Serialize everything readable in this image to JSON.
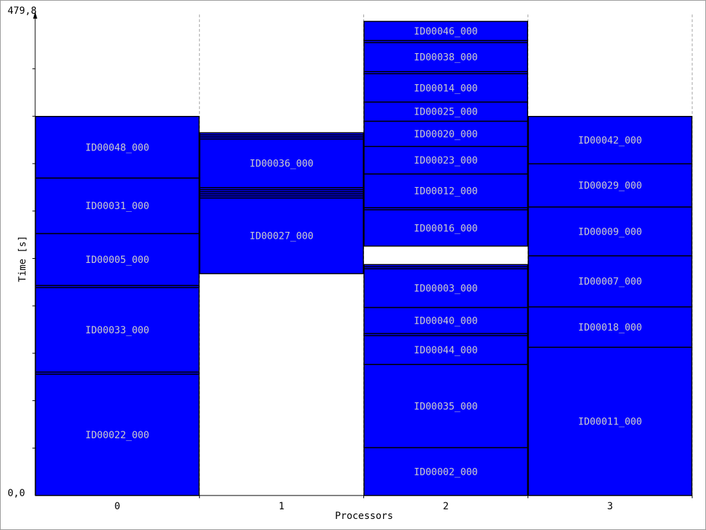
{
  "chart_data": {
    "type": "bar",
    "subtype": "stacked-gantt",
    "xlabel": "Processors",
    "ylabel": "Time [s]",
    "ylim": [
      0,
      479.8
    ],
    "y_min_label": "0,0",
    "y_max_label": "479,8",
    "grid": false,
    "colors": {
      "task_fill": "#0000ff",
      "task_border": "#000000",
      "task_text": "#cccccc",
      "separator": "#a0a0a0"
    },
    "processors": [
      {
        "name": "0",
        "tasks": [
          {
            "label": "ID00022_000",
            "start": 0.0,
            "end": 122.8
          },
          {
            "label": "",
            "start": 122.8,
            "end": 124.9
          },
          {
            "label": "ID00033_000",
            "start": 124.9,
            "end": 210.5
          },
          {
            "label": "",
            "start": 210.5,
            "end": 212.6
          },
          {
            "label": "ID00005_000",
            "start": 212.6,
            "end": 265.1
          },
          {
            "label": "ID00031_000",
            "start": 265.1,
            "end": 321.3
          },
          {
            "label": "ID00048_000",
            "start": 321.3,
            "end": 383.6
          }
        ]
      },
      {
        "name": "1",
        "tasks": [
          {
            "label": "ID00027_000",
            "start": 224.5,
            "end": 301.1
          },
          {
            "label": "",
            "start": 301.1,
            "end": 303.2
          },
          {
            "label": "",
            "start": 303.2,
            "end": 305.3
          },
          {
            "label": "",
            "start": 305.3,
            "end": 307.4
          },
          {
            "label": "",
            "start": 307.4,
            "end": 309.5
          },
          {
            "label": "",
            "start": 309.5,
            "end": 311.6
          },
          {
            "label": "ID00036_000",
            "start": 311.6,
            "end": 360.8
          },
          {
            "label": "",
            "start": 360.8,
            "end": 362.9
          },
          {
            "label": "",
            "start": 362.9,
            "end": 365.0
          },
          {
            "label": "",
            "start": 365.0,
            "end": 367.1
          }
        ]
      },
      {
        "name": "2",
        "tasks": [
          {
            "label": "ID00002_000",
            "start": 0.0,
            "end": 48.5
          },
          {
            "label": "ID00035_000",
            "start": 48.5,
            "end": 132.6
          },
          {
            "label": "ID00044_000",
            "start": 132.6,
            "end": 161.8
          },
          {
            "label": "",
            "start": 161.8,
            "end": 163.9
          },
          {
            "label": "ID00040_000",
            "start": 163.9,
            "end": 190.3
          },
          {
            "label": "ID00003_000",
            "start": 190.3,
            "end": 229.5
          },
          {
            "label": "",
            "start": 229.5,
            "end": 231.6
          },
          {
            "label": "",
            "start": 231.6,
            "end": 233.7
          },
          {
            "label": "ID00016_000",
            "start": 252.4,
            "end": 289.2
          },
          {
            "label": "",
            "start": 289.2,
            "end": 291.3
          },
          {
            "label": "ID00012_000",
            "start": 291.3,
            "end": 325.4
          },
          {
            "label": "ID00023_000",
            "start": 325.4,
            "end": 353.2
          },
          {
            "label": "ID00020_000",
            "start": 353.2,
            "end": 378.8
          },
          {
            "label": "ID00025_000",
            "start": 378.8,
            "end": 398.2
          },
          {
            "label": "ID00014_000",
            "start": 398.2,
            "end": 426.9
          },
          {
            "label": "",
            "start": 426.9,
            "end": 429.0
          },
          {
            "label": "ID00038_000",
            "start": 429.0,
            "end": 458.4
          },
          {
            "label": "",
            "start": 458.4,
            "end": 460.5
          },
          {
            "label": "ID00046_000",
            "start": 460.5,
            "end": 479.8
          }
        ]
      },
      {
        "name": "3",
        "tasks": [
          {
            "label": "ID00011_000",
            "start": 0.0,
            "end": 150.0
          },
          {
            "label": "ID00018_000",
            "start": 150.0,
            "end": 190.9
          },
          {
            "label": "ID00007_000",
            "start": 190.9,
            "end": 242.6
          },
          {
            "label": "ID00009_000",
            "start": 242.6,
            "end": 292.0
          },
          {
            "label": "ID00029_000",
            "start": 292.0,
            "end": 335.7
          },
          {
            "label": "ID00042_000",
            "start": 335.7,
            "end": 383.6
          }
        ]
      }
    ]
  }
}
